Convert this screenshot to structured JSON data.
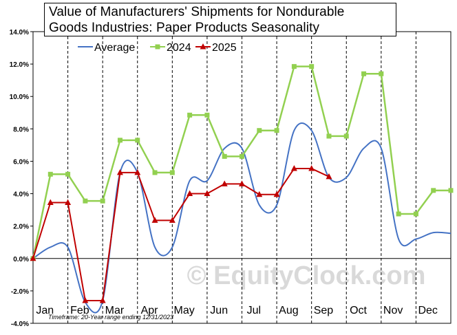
{
  "chart_data": {
    "type": "line",
    "title_lines": [
      "Value of Manufacturers'  Shipments  for Nondurable",
      "Goods Industries: Paper Products Seasonality"
    ],
    "footnote": "Timeframe: 20-Year range ending 12/31/2023",
    "watermark": "© EquityClock.com",
    "ylim": [
      -4,
      14
    ],
    "y_ticks": [
      -4,
      -2,
      0,
      2,
      4,
      6,
      8,
      10,
      12,
      14
    ],
    "y_tick_labels": [
      "-4.0%",
      "-2.0%",
      "0.0%",
      "2.0%",
      "4.0%",
      "6.0%",
      "8.0%",
      "10.0%",
      "12.0%",
      "14.0%"
    ],
    "months": [
      "Jan",
      "Feb",
      "Mar",
      "Apr",
      "May",
      "Jun",
      "Jul",
      "Aug",
      "Sep",
      "Oct",
      "Nov",
      "Dec"
    ],
    "legend": [
      "Average",
      "2024",
      "2025"
    ],
    "legend_position": "top-center",
    "colors": {
      "average": "#4472c4",
      "y2024": "#92d050",
      "y2025": "#c00000"
    },
    "series": [
      {
        "name": "Average",
        "x": [
          0,
          0.5,
          1,
          1.5,
          2,
          2.5,
          3,
          3.5,
          4,
          4.5,
          5,
          5.5,
          6,
          6.5,
          7,
          7.5,
          8,
          8.5,
          9,
          9.5,
          10,
          10.5,
          11,
          11.5,
          12
        ],
        "values": [
          0.0,
          0.7,
          0.7,
          -2.7,
          -2.6,
          5.3,
          5.3,
          0.7,
          0.7,
          4.8,
          4.8,
          6.8,
          6.8,
          3.3,
          3.3,
          7.9,
          7.9,
          5.0,
          5.0,
          6.8,
          6.8,
          1.2,
          1.2,
          1.6,
          1.55
        ]
      },
      {
        "name": "2024",
        "x": [
          0,
          0.5,
          1,
          1.5,
          2,
          2.5,
          3,
          3.5,
          4,
          4.5,
          5,
          5.5,
          6,
          6.5,
          7,
          7.5,
          8,
          8.5,
          9,
          9.5,
          10,
          10.5,
          11,
          11.5,
          12
        ],
        "values": [
          0.0,
          5.2,
          5.2,
          3.55,
          3.55,
          7.3,
          7.3,
          5.3,
          5.3,
          8.85,
          8.85,
          6.3,
          6.3,
          7.9,
          7.9,
          11.85,
          11.85,
          7.55,
          7.55,
          11.4,
          11.4,
          2.75,
          2.75,
          4.2,
          4.2
        ]
      },
      {
        "name": "2025",
        "x": [
          0,
          0.5,
          1,
          1.5,
          2,
          2.5,
          3,
          3.5,
          4,
          4.5,
          5,
          5.5,
          6,
          6.5,
          7,
          7.5,
          8,
          8.5
        ],
        "values": [
          0.0,
          3.45,
          3.45,
          -2.6,
          -2.6,
          5.3,
          5.3,
          2.35,
          2.35,
          4.0,
          4.0,
          4.6,
          4.6,
          3.95,
          3.95,
          5.55,
          5.55,
          5.05
        ]
      }
    ]
  }
}
